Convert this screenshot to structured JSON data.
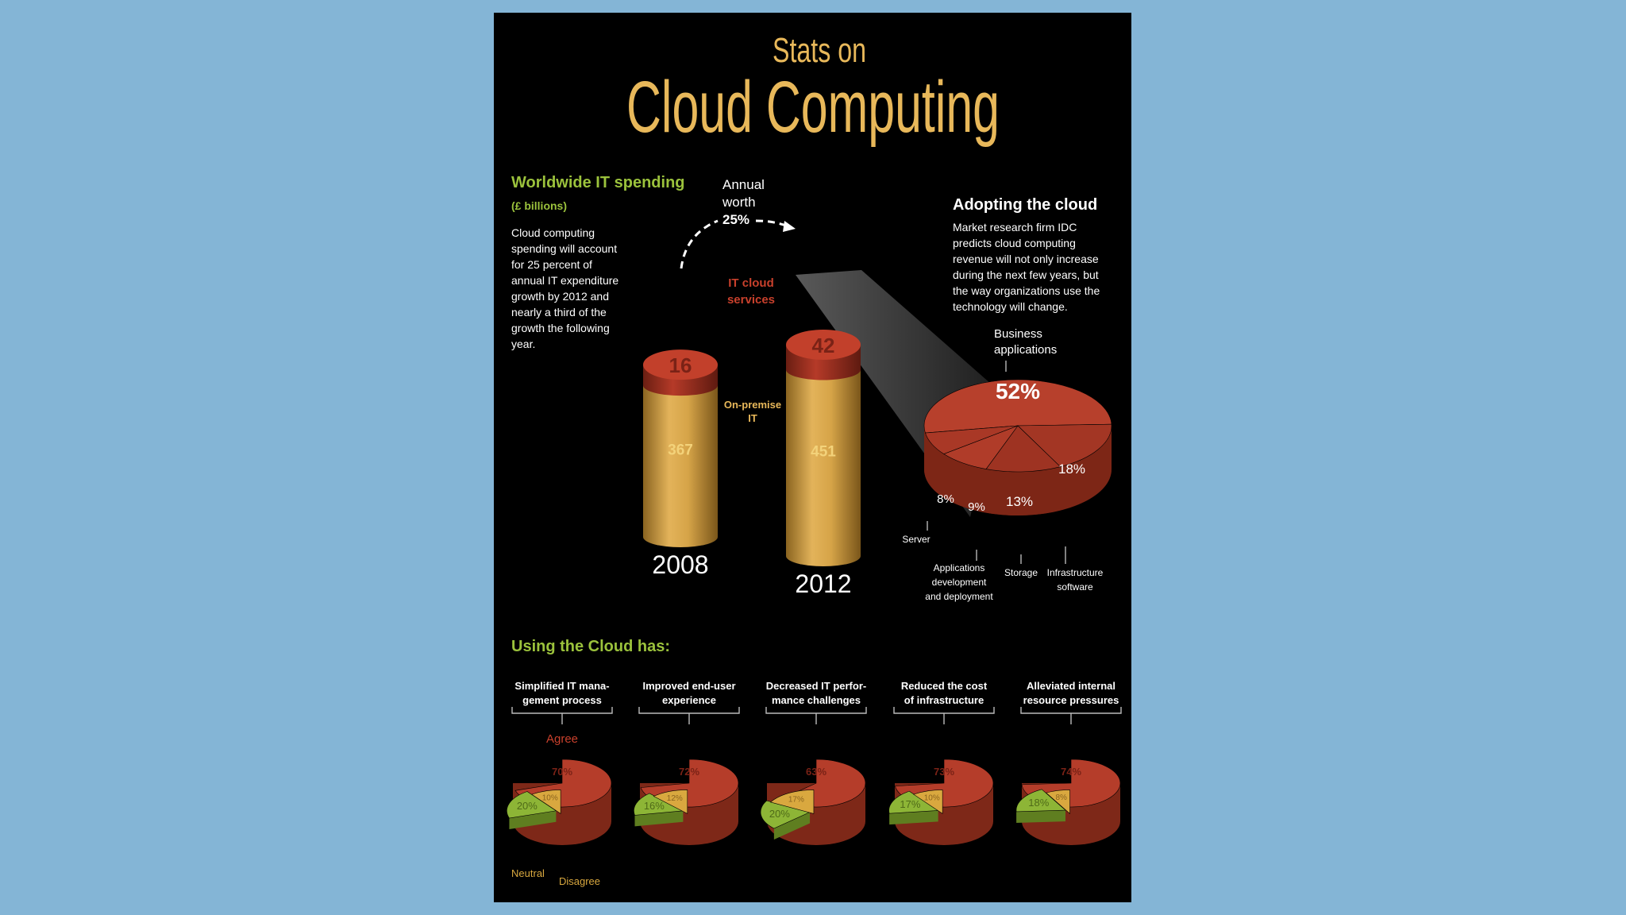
{
  "colors": {
    "background": "#84b5d6",
    "poster": "#000000",
    "gold": "#e8b85a",
    "green": "#9bc23c",
    "red": "#b23a2a",
    "red_dark": "#7a2216",
    "yellow": "#d9a83f",
    "white": "#ffffff"
  },
  "title": {
    "line1": "Stats on",
    "line2": "Cloud Computing"
  },
  "spending": {
    "heading": "Worldwide IT spending",
    "unit": "(£ billions)",
    "body": [
      "Cloud computing",
      "spending will account",
      "for 25 percent of",
      "annual IT expenditure",
      "growth by 2012 and",
      "nearly a third of the",
      "growth the following",
      "year."
    ],
    "annual_label": [
      "Annual",
      "worth"
    ],
    "annual_pct": "25%",
    "cloud_label": [
      "IT cloud",
      "services"
    ],
    "onprem_label": [
      "On-premise",
      "IT"
    ]
  },
  "adopting": {
    "heading": "Adopting the cloud",
    "body": [
      "Market research firm IDC",
      "predicts cloud computing",
      "revenue will not only increase",
      "during the next few years, but",
      "the way organizations use the",
      "technology will change."
    ],
    "business_label": [
      "Business",
      "applications"
    ],
    "server_label": "Server",
    "appdev_label": [
      "Applications",
      "development",
      "and deployment"
    ],
    "storage_label": "Storage",
    "infra_label": [
      "Infrastructure",
      "software"
    ]
  },
  "using": {
    "heading": "Using the Cloud has:",
    "agree_label": "Agree",
    "neutral_label": "Neutral",
    "disagree_label": "Disagree"
  },
  "chart_data": [
    {
      "type": "bar",
      "title": "Worldwide IT spending",
      "categories": [
        "2008",
        "2012"
      ],
      "series": [
        {
          "name": "On-premise IT",
          "values": [
            367,
            451
          ],
          "labels": [
            "367",
            "451"
          ]
        },
        {
          "name": "IT cloud services",
          "values": [
            16,
            42
          ],
          "labels": [
            "16",
            "42"
          ]
        }
      ]
    },
    {
      "type": "pie",
      "title": "Adopting the cloud",
      "slices": [
        {
          "name": "Business applications",
          "value": 52,
          "label": "52%"
        },
        {
          "name": "Infrastructure software",
          "value": 18,
          "label": "18%"
        },
        {
          "name": "Storage",
          "value": 13,
          "label": "13%"
        },
        {
          "name": "Applications development and deployment",
          "value": 9,
          "label": "9%"
        },
        {
          "name": "Server",
          "value": 8,
          "label": "8%"
        }
      ]
    },
    {
      "type": "pie",
      "title": "Using the Cloud has:",
      "legend": [
        "Agree",
        "Neutral",
        "Disagree"
      ],
      "charts": [
        {
          "label": [
            "Simplified IT mana-",
            "gement process"
          ],
          "agree": 70,
          "neutral": 20,
          "disagree": 10,
          "labels": [
            "70%",
            "20%",
            "10%"
          ]
        },
        {
          "label": [
            "Improved end-user",
            "experience"
          ],
          "agree": 72,
          "neutral": 16,
          "disagree": 12,
          "labels": [
            "72%",
            "16%",
            "12%"
          ]
        },
        {
          "label": [
            "Decreased IT perfor-",
            "mance challenges"
          ],
          "agree": 63,
          "neutral": 20,
          "disagree": 17,
          "labels": [
            "63%",
            "20%",
            "17%"
          ]
        },
        {
          "label": [
            "Reduced the cost",
            "of infrastructure"
          ],
          "agree": 73,
          "neutral": 17,
          "disagree": 10,
          "labels": [
            "73%",
            "17%",
            "10%"
          ]
        },
        {
          "label": [
            "Alleviated internal",
            "resource pressures"
          ],
          "agree": 74,
          "neutral": 18,
          "disagree": 8,
          "labels": [
            "74%",
            "18%",
            "8%"
          ]
        }
      ]
    }
  ]
}
